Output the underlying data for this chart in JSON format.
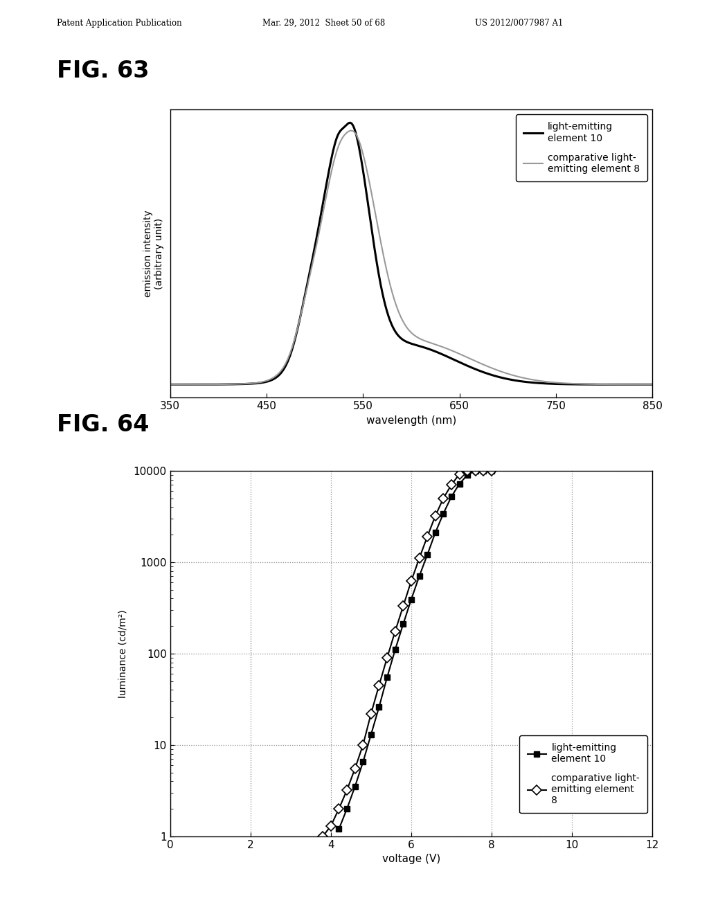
{
  "fig63": {
    "title": "FIG. 63",
    "xlabel": "wavelength (nm)",
    "ylabel": "emission intensity\n(arbitrary unit)",
    "xlim": [
      350,
      850
    ],
    "xticks": [
      350,
      450,
      550,
      650,
      750,
      850
    ],
    "legend1_label": "light-emitting\nelement 10",
    "legend2_label": "comparative light-\nemitting element 8"
  },
  "fig64": {
    "title": "FIG. 64",
    "xlabel": "voltage (V)",
    "ylabel": "luminance (cd/m²)",
    "xlim": [
      0,
      12
    ],
    "xticks": [
      0,
      2,
      4,
      6,
      8,
      10,
      12
    ],
    "ylim_log": [
      1,
      10000
    ],
    "yticks_log": [
      1,
      10,
      100,
      1000,
      10000
    ],
    "legend1_label": "light-emitting\nelement 10",
    "legend2_label": "comparative light-\nemitting element\n8"
  },
  "header_left": "Patent Application Publication",
  "header_mid": "Mar. 29, 2012  Sheet 50 of 68",
  "header_right": "US 2012/0077987 A1",
  "bg_color": "#ffffff",
  "line_color_dark": "#000000",
  "line_color_gray": "#999999"
}
